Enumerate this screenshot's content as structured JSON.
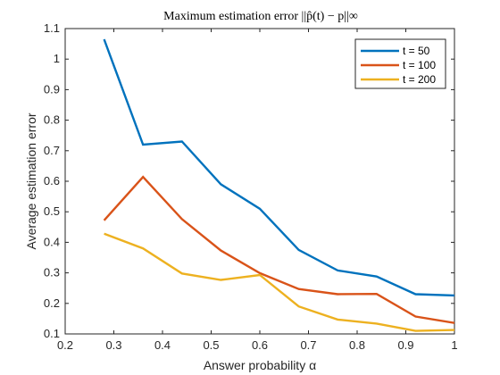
{
  "chart_data": {
    "type": "line",
    "title": "Maximum estimation error ||p̂(t) − p||∞",
    "xlabel": "Answer probability α",
    "ylabel": "Average estimation error",
    "xlim": [
      0.2,
      1.0
    ],
    "ylim": [
      0.1,
      1.1
    ],
    "xticks": [
      0.2,
      0.3,
      0.4,
      0.5,
      0.6,
      0.7,
      0.8,
      0.9,
      1.0
    ],
    "xtick_labels": [
      "0.2",
      "0.3",
      "0.4",
      "0.5",
      "0.6",
      "0.7",
      "0.8",
      "0.9",
      "1"
    ],
    "yticks": [
      0.1,
      0.2,
      0.3,
      0.4,
      0.5,
      0.6,
      0.7,
      0.8,
      0.9,
      1.0,
      1.1
    ],
    "ytick_labels": [
      "0.1",
      "0.2",
      "0.3",
      "0.4",
      "0.5",
      "0.6",
      "0.7",
      "0.8",
      "0.9",
      "1",
      "1.1"
    ],
    "grid": false,
    "legend_position": "top-right",
    "x": [
      0.28,
      0.36,
      0.44,
      0.52,
      0.6,
      0.68,
      0.76,
      0.84,
      0.92,
      1.0
    ],
    "series": [
      {
        "name": "t = 50",
        "color": "#0072BD",
        "values": [
          1.065,
          0.72,
          0.73,
          0.59,
          0.51,
          0.375,
          0.308,
          0.288,
          0.23,
          0.226
        ]
      },
      {
        "name": "t = 100",
        "color": "#D95319",
        "values": [
          0.472,
          0.614,
          0.476,
          0.373,
          0.299,
          0.247,
          0.23,
          0.231,
          0.157,
          0.136
        ]
      },
      {
        "name": "t = 200",
        "color": "#EDB120",
        "values": [
          0.428,
          0.38,
          0.298,
          0.277,
          0.293,
          0.19,
          0.147,
          0.134,
          0.11,
          0.113
        ]
      }
    ]
  }
}
